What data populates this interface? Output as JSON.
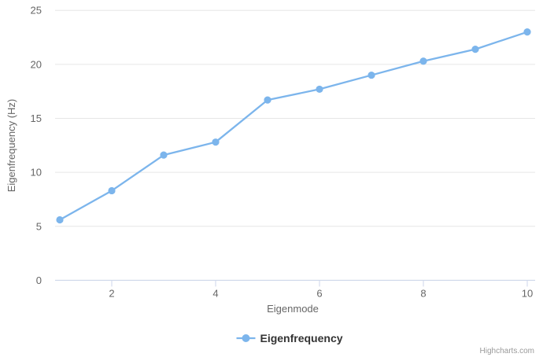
{
  "chart_data": {
    "type": "line",
    "title": "",
    "xlabel": "Eigenmode",
    "ylabel": "Eigenfrequency (Hz)",
    "x": [
      1,
      2,
      3,
      4,
      5,
      6,
      7,
      8,
      9,
      10
    ],
    "series": [
      {
        "name": "Eigenfrequency",
        "values": [
          5.6,
          8.3,
          11.6,
          12.8,
          16.7,
          17.7,
          19.0,
          20.3,
          21.4,
          23.0
        ]
      }
    ],
    "xlim": [
      1,
      10
    ],
    "ylim": [
      0,
      25
    ],
    "xticks": [
      2,
      4,
      6,
      8,
      10
    ],
    "yticks": [
      0,
      5,
      10,
      15,
      20,
      25
    ],
    "grid": "horizontal",
    "legend_position": "bottom-center",
    "legend_entries": [
      "Eigenfrequency"
    ]
  },
  "colors": {
    "series": "#7cb5ec",
    "grid": "#e6e6e6",
    "axis_line": "#ccd6eb",
    "tick_label": "#666666",
    "axis_title": "#666666",
    "legend_text": "#333333",
    "credits": "#999999",
    "background": "#ffffff"
  },
  "credits": {
    "label": "Highcharts.com"
  }
}
